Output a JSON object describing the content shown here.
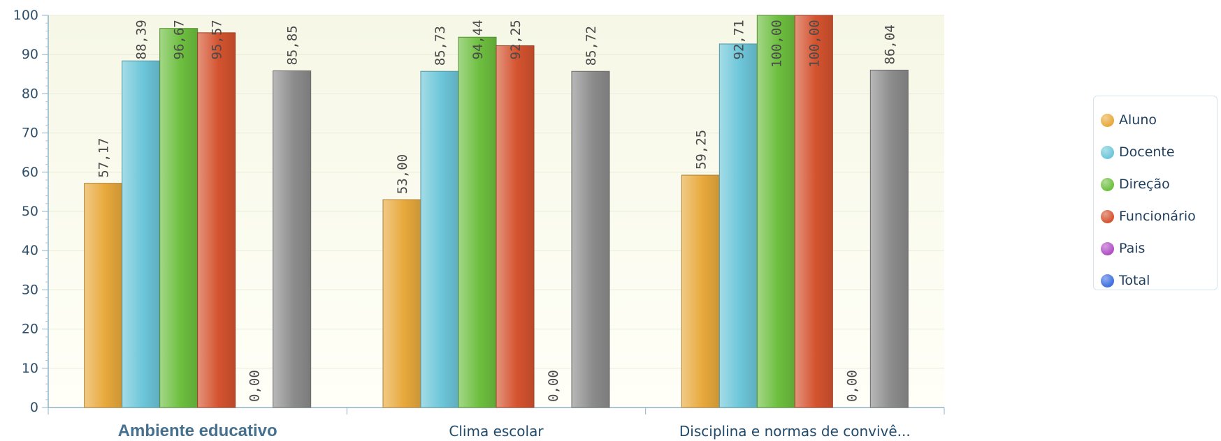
{
  "chart_data": {
    "type": "bar",
    "categories": [
      "Ambiente educativo",
      "Clima escolar",
      "Disciplina e normas de convivê..."
    ],
    "series": [
      {
        "name": "Aluno",
        "color": "#e8a93c",
        "values": [
          57.17,
          53.0,
          59.25
        ],
        "labels": [
          "57,17",
          "53,00",
          "59,25"
        ],
        "visible": true
      },
      {
        "name": "Docente",
        "color": "#6cc6d9",
        "values": [
          88.39,
          85.73,
          92.71
        ],
        "labels": [
          "88,39",
          "85,73",
          "92,71"
        ],
        "visible": true
      },
      {
        "name": "Direção",
        "color": "#6dbf3f",
        "values": [
          96.67,
          94.44,
          100.0
        ],
        "labels": [
          "96,67",
          "94,44",
          "100,00"
        ],
        "visible": true
      },
      {
        "name": "Funcionário",
        "color": "#d4532f",
        "values": [
          95.57,
          92.25,
          100.0
        ],
        "labels": [
          "95,57",
          "92,25",
          "100,00"
        ],
        "visible": true
      },
      {
        "name": "Pais",
        "color": "#b04ec4",
        "values": [
          0.0,
          0.0,
          0.0
        ],
        "labels": [
          "0,00",
          "0,00",
          "0,00"
        ],
        "visible": true
      },
      {
        "name": "Total",
        "color": "#3d6fe0",
        "values": [
          85.85,
          85.72,
          86.04
        ],
        "labels": [
          "85,85",
          "85,72",
          "86,04"
        ],
        "visible": true
      }
    ],
    "total_bar_color": "#8c8c8c",
    "ylim": [
      0,
      100
    ],
    "yticks": [
      0,
      10,
      20,
      30,
      40,
      50,
      60,
      70,
      80,
      90,
      100
    ],
    "grid": true,
    "legend_position": "right",
    "highlighted_category": "Ambiente educativo",
    "title": "",
    "xlabel": "",
    "ylabel": ""
  }
}
